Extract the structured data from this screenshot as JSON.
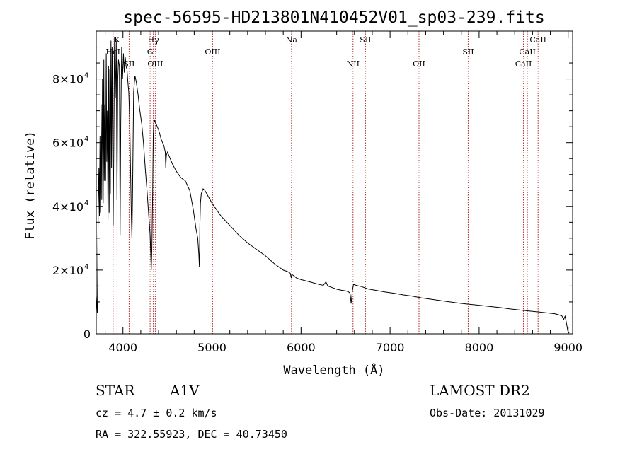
{
  "chart_data": {
    "type": "line",
    "title": "spec-56595-HD213801N410452V01_sp03-239.fits",
    "xlabel": "Wavelength (Å)",
    "ylabel": "Flux (relative)",
    "xlim": [
      3700,
      9050
    ],
    "ylim": [
      0,
      95000
    ],
    "xticks": [
      4000,
      5000,
      6000,
      7000,
      8000,
      9000
    ],
    "yticks": [
      {
        "value": 0,
        "mant": "0",
        "exp": ""
      },
      {
        "value": 20000,
        "mant": "2×10",
        "exp": "4"
      },
      {
        "value": 40000,
        "mant": "4×10",
        "exp": "4"
      },
      {
        "value": 60000,
        "mant": "6×10",
        "exp": "4"
      },
      {
        "value": 80000,
        "mant": "8×10",
        "exp": "4"
      }
    ],
    "grid": false,
    "series": [
      {
        "x": [
          3700,
          3712,
          3722,
          3730,
          3736,
          3742,
          3748,
          3755,
          3762,
          3770,
          3778,
          3785,
          3790,
          3797,
          3805,
          3812,
          3818,
          3825,
          3832,
          3838,
          3845,
          3852,
          3858,
          3865,
          3872,
          3878,
          3885,
          3890,
          3897,
          3905,
          3915,
          3925,
          3933,
          3942,
          3950,
          3960,
          3968,
          3975,
          3985,
          3995,
          4005,
          4015,
          4025,
          4035,
          4045,
          4055,
          4065,
          4075,
          4085,
          4095,
          4101,
          4108,
          4120,
          4135,
          4150,
          4170,
          4190,
          4210,
          4230,
          4250,
          4270,
          4290,
          4305,
          4318,
          4325,
          4334,
          4340,
          4346,
          4355,
          4370,
          4385,
          4400,
          4430,
          4460,
          4475,
          4481,
          4487,
          4500,
          4530,
          4560,
          4600,
          4650,
          4700,
          4750,
          4790,
          4820,
          4840,
          4852,
          4858,
          4861,
          4864,
          4870,
          4880,
          4900,
          4920,
          4950,
          5000,
          5050,
          5100,
          5150,
          5200,
          5300,
          5400,
          5500,
          5600,
          5700,
          5800,
          5850,
          5880,
          5890,
          5896,
          5905,
          5950,
          6000,
          6100,
          6200,
          6250,
          6280,
          6300,
          6350,
          6400,
          6450,
          6500,
          6530,
          6550,
          6558,
          6563,
          6568,
          6576,
          6590,
          6620,
          6680,
          6750,
          6850,
          6950,
          7050,
          7150,
          7250,
          7350,
          7450,
          7550,
          7650,
          7750,
          7850,
          7950,
          8050,
          8150,
          8250,
          8350,
          8450,
          8550,
          8650,
          8750,
          8850,
          8900,
          8930,
          8950,
          8965,
          8980,
          8995,
          9010
        ],
        "y": [
          12000,
          6500,
          40000,
          52000,
          37000,
          62000,
          38000,
          72000,
          42000,
          80000,
          41000,
          86000,
          48000,
          72000,
          48000,
          88000,
          54000,
          70000,
          36000,
          84000,
          38000,
          83000,
          44000,
          92000,
          52000,
          90000,
          58000,
          34000,
          58000,
          93000,
          74000,
          92000,
          42000,
          80000,
          86000,
          84000,
          31000,
          66000,
          90000,
          80000,
          88000,
          82000,
          87000,
          84000,
          83000,
          79000,
          76000,
          68000,
          52000,
          36000,
          30000,
          44000,
          76000,
          81000,
          79000,
          75000,
          70000,
          66000,
          60000,
          52000,
          45000,
          37000,
          31000,
          20000,
          27000,
          46000,
          62000,
          66000,
          67000,
          66000,
          65000,
          64000,
          61000,
          59000,
          57000,
          52000,
          56000,
          57000,
          55000,
          53000,
          51000,
          49000,
          48000,
          45000,
          39000,
          33000,
          30000,
          25000,
          21000,
          26000,
          34000,
          41000,
          44000,
          45500,
          45000,
          43500,
          41000,
          39000,
          37000,
          35500,
          34000,
          31000,
          28500,
          26500,
          24500,
          22000,
          20000,
          19500,
          19000,
          17500,
          18500,
          18500,
          17500,
          17000,
          16300,
          15500,
          15200,
          16300,
          15000,
          14500,
          14000,
          13700,
          13500,
          13200,
          12800,
          11000,
          9500,
          11000,
          13500,
          15500,
          15200,
          14800,
          14100,
          13600,
          13100,
          12700,
          12200,
          11800,
          11300,
          10900,
          10500,
          10100,
          9700,
          9400,
          9100,
          8800,
          8500,
          8200,
          7800,
          7500,
          7200,
          6900,
          6600,
          6300,
          5900,
          5600,
          4500,
          5500,
          3500,
          1000,
          200
        ]
      }
    ],
    "lines": [
      {
        "label": "K",
        "wl": 3934,
        "row": 1
      },
      {
        "label": "HeI",
        "wl": 3889,
        "row": 2
      },
      {
        "label": "SII",
        "wl": 4069,
        "row": 3
      },
      {
        "label": "Hγ",
        "wl": 4341,
        "row": 1
      },
      {
        "label": "G",
        "wl": 4305,
        "row": 2
      },
      {
        "label": "OIII",
        "wl": 4363,
        "row": 3
      },
      {
        "label": "OIII",
        "wl": 5007,
        "row": 2
      },
      {
        "label": "Na",
        "wl": 5893,
        "row": 1
      },
      {
        "label": "SII",
        "wl": 6724,
        "row": 1
      },
      {
        "label": "NII",
        "wl": 6584,
        "row": 3
      },
      {
        "label": "OII",
        "wl": 7325,
        "row": 3
      },
      {
        "label": "SII",
        "wl": 7877,
        "row": 2
      },
      {
        "label": "CaII",
        "wl": 8662,
        "row": 1
      },
      {
        "label": "CaII",
        "wl": 8542,
        "row": 2
      },
      {
        "label": "CaII",
        "wl": 8498,
        "row": 3
      }
    ]
  },
  "info": {
    "object": "STAR",
    "subclass": "A1V",
    "survey": "LAMOST DR2",
    "cz": "cz = 4.7 ± 0.2 km/s",
    "obs_date": "Obs-Date: 20131029",
    "coords": "RA = 322.55923, DEC =  40.73450"
  }
}
